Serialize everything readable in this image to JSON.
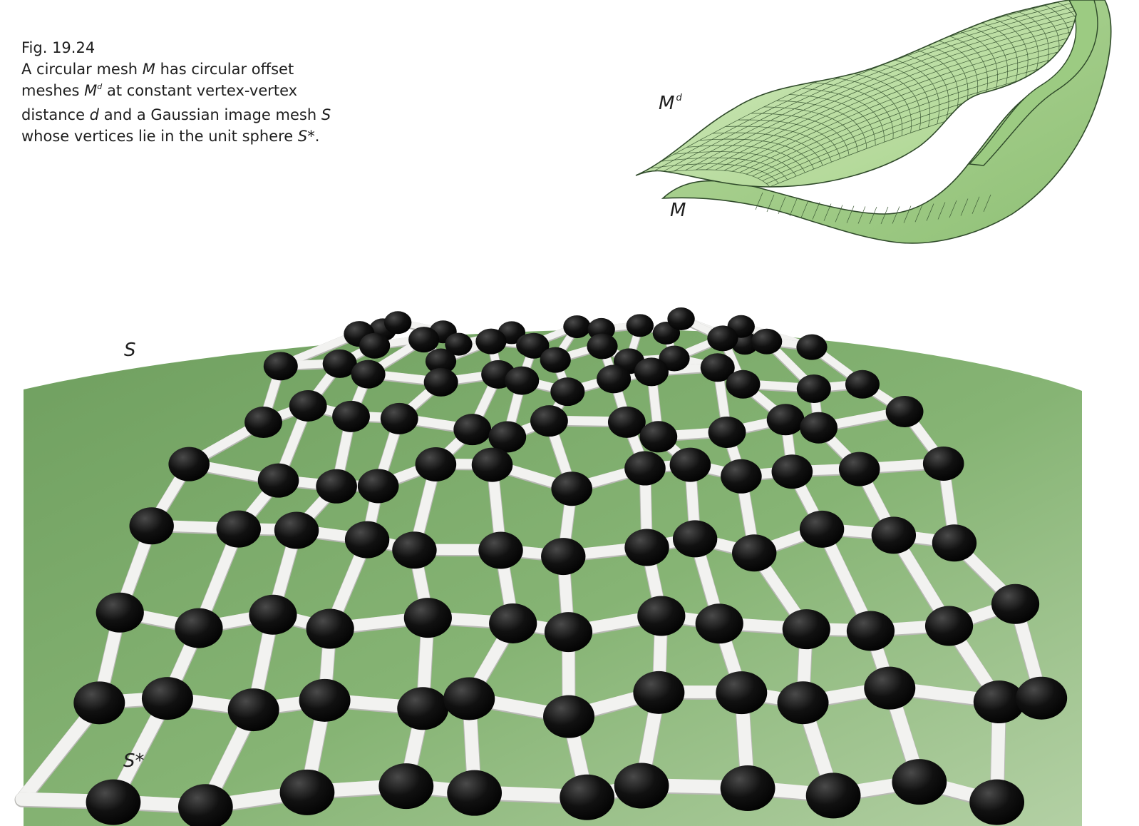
{
  "caption": {
    "figure_number": "Fig. 19.24",
    "line1": {
      "a": "A circular mesh ",
      "b": "M",
      "c": " has circular offset"
    },
    "line2": {
      "a": "meshes ",
      "b": "M",
      "sup": "d",
      "c": " at constant vertex-vertex"
    },
    "line3": {
      "a": "distance ",
      "b": "d",
      "c": " and a Gaussian image mesh ",
      "d": "S"
    },
    "line4": {
      "a": "whose vertices lie in the unit sphere ",
      "b": "S*",
      "c": "."
    }
  },
  "labels": {
    "offset_mesh": "M",
    "offset_mesh_sup": "d",
    "mesh": "M",
    "gauss_mesh": "S",
    "unit_sphere": "S*"
  },
  "colors": {
    "surface_light": "#c6e3ae",
    "surface_dark": "#9fcc85",
    "sphere_green": "#7fae6e",
    "sphere_light": "#a9c79a",
    "edge_white": "#ececea",
    "vertex_black": "#0c0c0c"
  }
}
